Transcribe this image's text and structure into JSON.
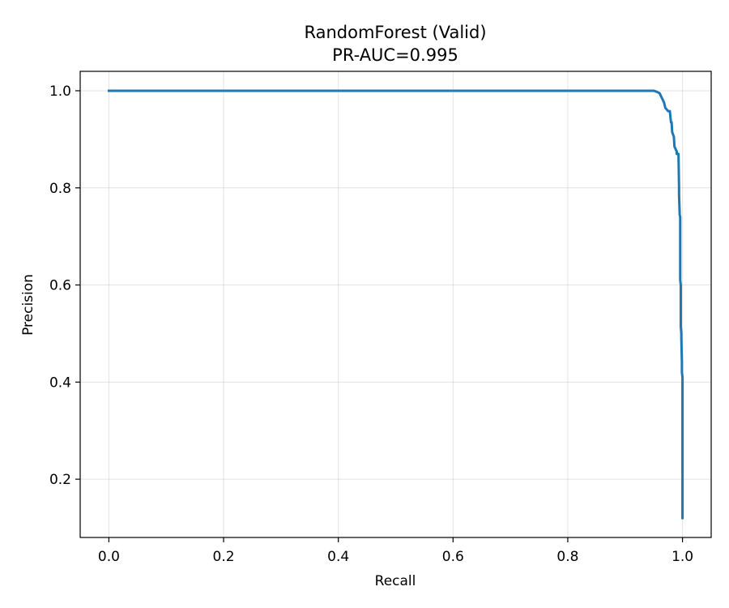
{
  "chart_data": {
    "type": "line",
    "title": "RandomForest (Valid)",
    "subtitle": "PR-AUC=0.995",
    "xlabel": "Recall",
    "ylabel": "Precision",
    "xlim": [
      -0.05,
      1.05
    ],
    "ylim": [
      0.08,
      1.04
    ],
    "xticks": [
      0.0,
      0.2,
      0.4,
      0.6,
      0.8,
      1.0
    ],
    "xtick_labels": [
      "0.0",
      "0.2",
      "0.4",
      "0.6",
      "0.8",
      "1.0"
    ],
    "yticks": [
      0.2,
      0.4,
      0.6,
      0.8,
      1.0
    ],
    "ytick_labels": [
      "0.2",
      "0.4",
      "0.6",
      "0.8",
      "1.0"
    ],
    "grid": true,
    "series": [
      {
        "color": "#1f77b4",
        "x": [
          0.0,
          0.5,
          0.95,
          0.955,
          0.96,
          0.962,
          0.965,
          0.968,
          0.97,
          0.975,
          0.978,
          0.979,
          0.98,
          0.981,
          0.982,
          0.985,
          0.986,
          0.99,
          0.99,
          0.993,
          0.994,
          0.994,
          0.995,
          0.995,
          0.996,
          0.996,
          0.997,
          0.997,
          0.998,
          0.998,
          0.999,
          0.999,
          1.0,
          1.0
        ],
        "y": [
          1.0,
          1.0,
          1.0,
          0.998,
          0.995,
          0.99,
          0.983,
          0.975,
          0.965,
          0.958,
          0.958,
          0.945,
          0.935,
          0.935,
          0.915,
          0.905,
          0.885,
          0.875,
          0.87,
          0.87,
          0.8,
          0.785,
          0.75,
          0.745,
          0.74,
          0.61,
          0.6,
          0.515,
          0.5,
          0.49,
          0.44,
          0.42,
          0.41,
          0.12
        ]
      }
    ]
  }
}
